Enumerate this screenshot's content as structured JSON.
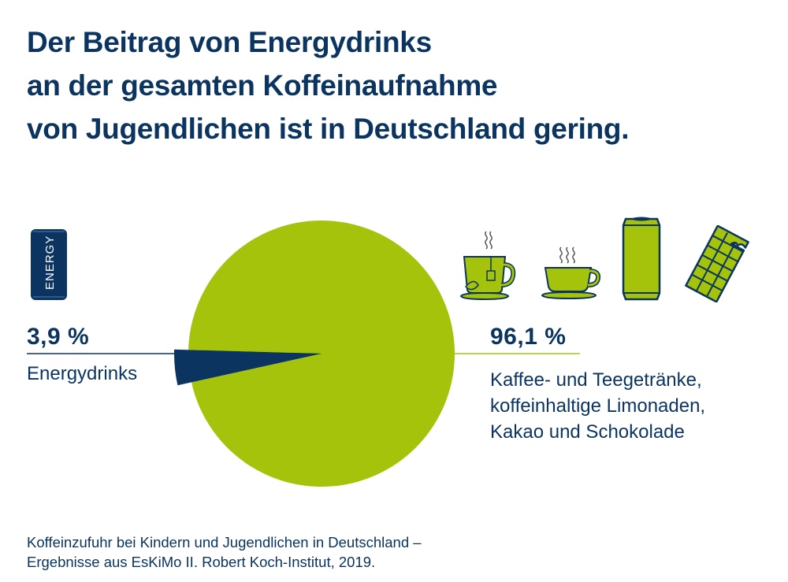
{
  "title_lines": [
    "Der Beitrag von Energydrinks",
    "an der gesamten Koffeinaufnahme",
    "von Jugendlichen ist in Deutschland gering."
  ],
  "chart_data": {
    "type": "pie",
    "slices": [
      {
        "label": "Energydrinks",
        "value": 3.9,
        "value_text": "3,9 %",
        "color": "#0b3560"
      },
      {
        "label": "Kaffee- und Teegetränke, koffeinhaltige Limonaden, Kakao und Schokolade",
        "value": 96.1,
        "value_text": "96,1 %",
        "color": "#a5c30a"
      }
    ]
  },
  "left_label": {
    "pct": "3,9 %",
    "text": "Energydrinks"
  },
  "right_label": {
    "pct": "96,1 %",
    "lines": [
      "Kaffee- und Teegetränke,",
      "koffeinhaltige Limonaden,",
      "Kakao und Schokolade"
    ]
  },
  "energy_can_text": "ENERGY",
  "icons": [
    "energy-can-icon",
    "tea-cup-icon",
    "coffee-cup-icon",
    "soda-can-icon",
    "chocolate-bar-icon"
  ],
  "source_lines": [
    "Koffeinzufuhr bei Kindern und Jugendlichen in Deutschland –",
    "Ergebnisse aus EsKiMo II. Robert Koch-Institut, 2019."
  ],
  "colors": {
    "navy": "#0b3560",
    "green": "#a5c30a"
  }
}
